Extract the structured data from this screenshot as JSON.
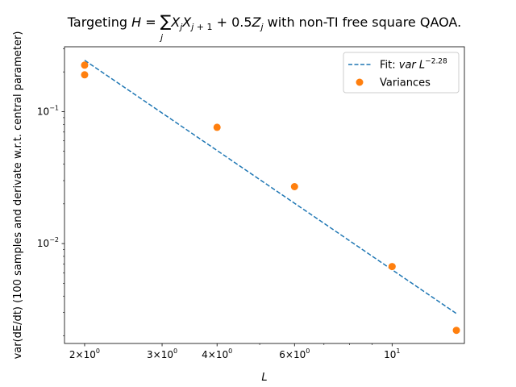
{
  "chart_data": {
    "type": "scatter",
    "title": "Targeting H = ∑ⱼ XⱼXⱼ₊₁ + 0.5Zⱼ with non-TI free square QAOA.",
    "title_parts": {
      "prefix": "Targeting ",
      "suffix": " with non-TI free square QAOA."
    },
    "xlabel": "L",
    "ylabel": "var(dE/dt) (100 samples and derivate w.r.t. central parameter)",
    "xscale": "log",
    "yscale": "log",
    "xlim": [
      1.8,
      14.6
    ],
    "ylim": [
      0.00175,
      0.31
    ],
    "grid": false,
    "legend_position": "top-right",
    "x_ticks": [
      {
        "value": 2,
        "base": "2×10",
        "exp": "0"
      },
      {
        "value": 3,
        "base": "3×10",
        "exp": "0"
      },
      {
        "value": 4,
        "base": "4×10",
        "exp": "0"
      },
      {
        "value": 6,
        "base": "6×10",
        "exp": "0"
      },
      {
        "value": 10,
        "base": "10",
        "exp": "1"
      }
    ],
    "y_ticks": [
      {
        "value": 0.1,
        "base": "10",
        "exp": "−1"
      },
      {
        "value": 0.01,
        "base": "10",
        "exp": "−2"
      }
    ],
    "series": [
      {
        "name": "Fit: var L^−2.28",
        "kind": "line",
        "style": "dashed",
        "color": "#1f77b4",
        "exponent": -2.28,
        "x": [
          2,
          14
        ],
        "y": [
          0.245,
          0.00295
        ]
      },
      {
        "name": "Variances",
        "kind": "scatter",
        "color": "#ff7f0e",
        "x": [
          2,
          2,
          4,
          6,
          10,
          14
        ],
        "y": [
          0.225,
          0.19,
          0.076,
          0.027,
          0.0067,
          0.0022
        ]
      }
    ],
    "legend": {
      "fit_prefix": "Fit: ",
      "fit_var": "var",
      "fit_L": "L",
      "fit_exp": "−2.28",
      "variances_label": "Variances"
    }
  },
  "colors": {
    "fit_line": "#1f77b4",
    "markers": "#ff7f0e",
    "axes": "#000000"
  }
}
